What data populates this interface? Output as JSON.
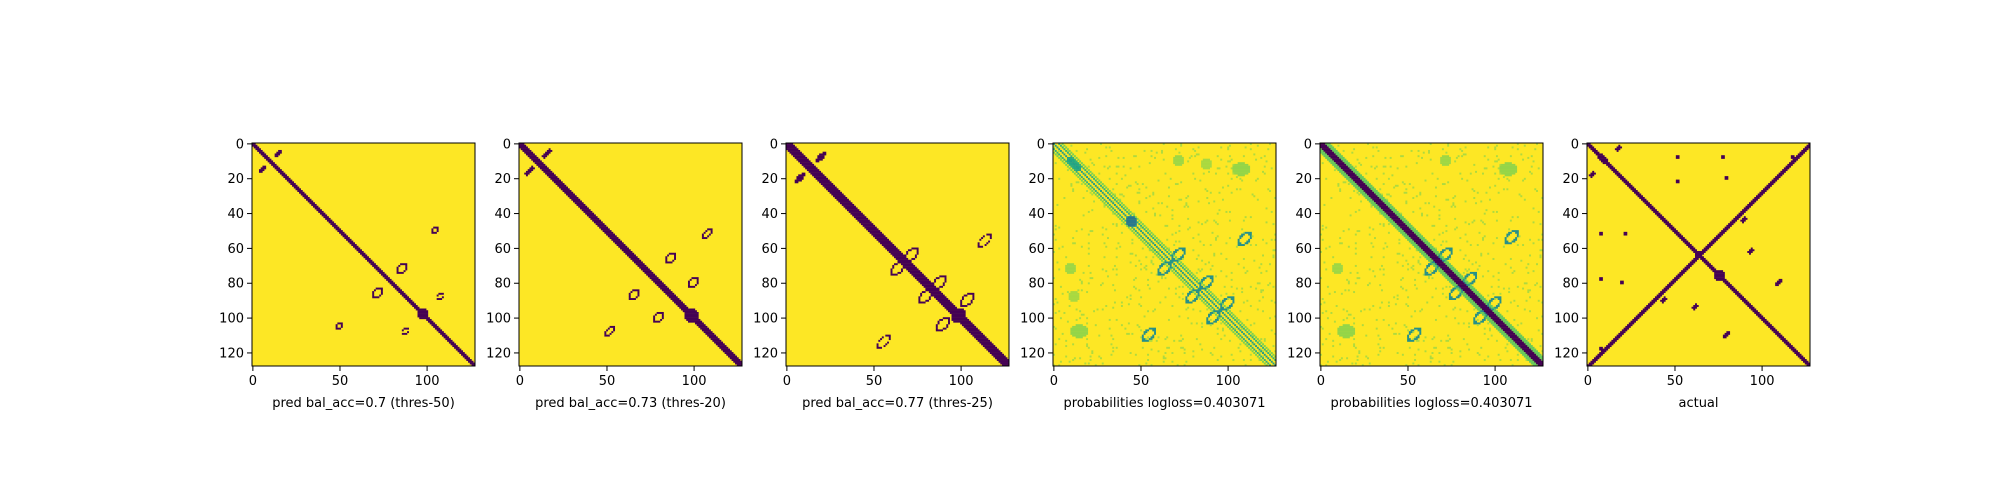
{
  "colors": {
    "contact": "#440154",
    "background": "#fde725",
    "mid_high": "#7ad151",
    "mid": "#22a884",
    "mid_low": "#2a788e",
    "deep": "#414487"
  },
  "chart_data": [
    {
      "type": "heatmap",
      "panel": "pred-threshold-50",
      "xlabel": "pred bal_acc=0.7 (thres-50)",
      "xticks": [
        0,
        50,
        100
      ],
      "yticks": [
        0,
        20,
        40,
        60,
        80,
        100,
        120
      ],
      "xlim": [
        0,
        127
      ],
      "ylim": [
        127,
        0
      ],
      "value_kind": "binary",
      "diagonal_halfwidth": 1.5,
      "features": [
        {
          "kind": "ellipse",
          "cx": 50,
          "cy": 105,
          "rx": 2.5,
          "ry": 1.5,
          "angle": -45,
          "ring": 1.2
        },
        {
          "kind": "ellipse",
          "cx": 105,
          "cy": 50,
          "rx": 2.5,
          "ry": 1.5,
          "angle": -45,
          "ring": 1.2
        },
        {
          "kind": "ellipse",
          "cx": 72,
          "cy": 86,
          "rx": 4,
          "ry": 2.5,
          "angle": -45,
          "ring": 1.0
        },
        {
          "kind": "ellipse",
          "cx": 86,
          "cy": 72,
          "rx": 4,
          "ry": 2.5,
          "angle": -45,
          "ring": 1.0
        },
        {
          "kind": "ellipse",
          "cx": 98,
          "cy": 98,
          "rx": 3.5,
          "ry": 3.5,
          "angle": 0,
          "ring": 0
        },
        {
          "kind": "ellipse",
          "cx": 88,
          "cy": 108,
          "rx": 3,
          "ry": 1.5,
          "angle": -45,
          "ring": 1.0
        },
        {
          "kind": "ellipse",
          "cx": 108,
          "cy": 88,
          "rx": 3,
          "ry": 1.5,
          "angle": -45,
          "ring": 1.0
        },
        {
          "kind": "ellipse",
          "cx": 6,
          "cy": 15,
          "rx": 3,
          "ry": 1.2,
          "angle": -45,
          "ring": 0
        },
        {
          "kind": "ellipse",
          "cx": 15,
          "cy": 6,
          "rx": 3,
          "ry": 1.2,
          "angle": -45,
          "ring": 0
        }
      ]
    },
    {
      "type": "heatmap",
      "panel": "pred-threshold-20",
      "xlabel": "pred bal_acc=0.73 (thres-20)",
      "xticks": [
        0,
        50,
        100
      ],
      "yticks": [
        0,
        20,
        40,
        60,
        80,
        100,
        120
      ],
      "xlim": [
        0,
        127
      ],
      "ylim": [
        127,
        0
      ],
      "value_kind": "binary",
      "diagonal_halfwidth": 2.2,
      "features": [
        {
          "kind": "ellipse",
          "cx": 52,
          "cy": 108,
          "rx": 4,
          "ry": 2,
          "angle": -45,
          "ring": 1.2
        },
        {
          "kind": "ellipse",
          "cx": 108,
          "cy": 52,
          "rx": 4,
          "ry": 2,
          "angle": -45,
          "ring": 1.2
        },
        {
          "kind": "ellipse",
          "cx": 66,
          "cy": 87,
          "rx": 4,
          "ry": 2.5,
          "angle": -45,
          "ring": 1.1
        },
        {
          "kind": "ellipse",
          "cx": 87,
          "cy": 66,
          "rx": 4,
          "ry": 2.5,
          "angle": -45,
          "ring": 1.1
        },
        {
          "kind": "ellipse",
          "cx": 80,
          "cy": 100,
          "rx": 4,
          "ry": 2.5,
          "angle": -45,
          "ring": 1.1
        },
        {
          "kind": "ellipse",
          "cx": 100,
          "cy": 80,
          "rx": 4,
          "ry": 2.5,
          "angle": -45,
          "ring": 1.1
        },
        {
          "kind": "ellipse",
          "cx": 99,
          "cy": 99,
          "rx": 4,
          "ry": 4,
          "angle": 0,
          "ring": 0
        },
        {
          "kind": "ellipse",
          "cx": 6,
          "cy": 16,
          "rx": 3.5,
          "ry": 1.4,
          "angle": -45,
          "ring": 0
        },
        {
          "kind": "ellipse",
          "cx": 16,
          "cy": 6,
          "rx": 3.5,
          "ry": 1.4,
          "angle": -45,
          "ring": 0
        }
      ]
    },
    {
      "type": "heatmap",
      "panel": "pred-threshold-25",
      "xlabel": "pred bal_acc=0.77 (thres-25)",
      "xticks": [
        0,
        50,
        100
      ],
      "yticks": [
        0,
        20,
        40,
        60,
        80,
        100,
        120
      ],
      "xlim": [
        0,
        127
      ],
      "ylim": [
        127,
        0
      ],
      "value_kind": "binary",
      "diagonal_halfwidth": 3.0,
      "features": [
        {
          "kind": "ellipse",
          "cx": 56,
          "cy": 114,
          "rx": 5,
          "ry": 2.5,
          "angle": -45,
          "ring": 1.4
        },
        {
          "kind": "ellipse",
          "cx": 114,
          "cy": 56,
          "rx": 5,
          "ry": 2.5,
          "angle": -45,
          "ring": 1.4
        },
        {
          "kind": "ellipse",
          "cx": 64,
          "cy": 72,
          "rx": 5,
          "ry": 3,
          "angle": -45,
          "ring": 1.3
        },
        {
          "kind": "ellipse",
          "cx": 72,
          "cy": 64,
          "rx": 5,
          "ry": 3,
          "angle": -45,
          "ring": 1.3
        },
        {
          "kind": "ellipse",
          "cx": 80,
          "cy": 88,
          "rx": 5,
          "ry": 3,
          "angle": -45,
          "ring": 1.3
        },
        {
          "kind": "ellipse",
          "cx": 88,
          "cy": 80,
          "rx": 5,
          "ry": 3,
          "angle": -45,
          "ring": 1.3
        },
        {
          "kind": "ellipse",
          "cx": 90,
          "cy": 104,
          "rx": 5,
          "ry": 3,
          "angle": -45,
          "ring": 1.3
        },
        {
          "kind": "ellipse",
          "cx": 104,
          "cy": 90,
          "rx": 5,
          "ry": 3,
          "angle": -45,
          "ring": 1.3
        },
        {
          "kind": "ellipse",
          "cx": 10,
          "cy": 10,
          "rx": 6,
          "ry": 2.5,
          "angle": 45,
          "ring": 0
        },
        {
          "kind": "ellipse",
          "cx": 8,
          "cy": 20,
          "rx": 4,
          "ry": 1.5,
          "angle": -45,
          "ring": 0
        },
        {
          "kind": "ellipse",
          "cx": 20,
          "cy": 8,
          "rx": 4,
          "ry": 1.5,
          "angle": -45,
          "ring": 0
        },
        {
          "kind": "ellipse",
          "cx": 99,
          "cy": 99,
          "rx": 4.5,
          "ry": 4.5,
          "angle": 0,
          "ring": 0
        }
      ]
    },
    {
      "type": "heatmap",
      "panel": "probabilities",
      "xlabel": "probabilities logloss=0.403071",
      "xticks": [
        0,
        50,
        100
      ],
      "yticks": [
        0,
        20,
        40,
        60,
        80,
        100,
        120
      ],
      "xlim": [
        0,
        127
      ],
      "ylim": [
        127,
        0
      ],
      "value_kind": "probability",
      "diagonal_halfwidth": 0,
      "features": [
        {
          "kind": "line",
          "offset": 3,
          "width": 0.8,
          "value": 0.45
        },
        {
          "kind": "line",
          "offset": -3,
          "width": 0.8,
          "value": 0.45
        },
        {
          "kind": "line",
          "offset": 5,
          "width": 0.6,
          "value": 0.25
        },
        {
          "kind": "line",
          "offset": -5,
          "width": 0.6,
          "value": 0.25
        },
        {
          "kind": "ellipse",
          "cx": 55,
          "cy": 110,
          "rx": 5,
          "ry": 3,
          "angle": -45,
          "ring": 1.5,
          "value": 0.6
        },
        {
          "kind": "ellipse",
          "cx": 110,
          "cy": 55,
          "rx": 5,
          "ry": 3,
          "angle": -45,
          "ring": 1.5,
          "value": 0.6
        },
        {
          "kind": "ellipse",
          "cx": 64,
          "cy": 72,
          "rx": 5,
          "ry": 3,
          "angle": -45,
          "ring": 1.5,
          "value": 0.6
        },
        {
          "kind": "ellipse",
          "cx": 72,
          "cy": 64,
          "rx": 5,
          "ry": 3,
          "angle": -45,
          "ring": 1.5,
          "value": 0.6
        },
        {
          "kind": "ellipse",
          "cx": 80,
          "cy": 88,
          "rx": 5,
          "ry": 3,
          "angle": -45,
          "ring": 1.5,
          "value": 0.6
        },
        {
          "kind": "ellipse",
          "cx": 88,
          "cy": 80,
          "rx": 5,
          "ry": 3,
          "angle": -45,
          "ring": 1.5,
          "value": 0.6
        },
        {
          "kind": "ellipse",
          "cx": 92,
          "cy": 100,
          "rx": 5,
          "ry": 3,
          "angle": -45,
          "ring": 1.5,
          "value": 0.6
        },
        {
          "kind": "ellipse",
          "cx": 100,
          "cy": 92,
          "rx": 5,
          "ry": 3,
          "angle": -45,
          "ring": 1.5,
          "value": 0.6
        },
        {
          "kind": "ellipse",
          "cx": 45,
          "cy": 45,
          "rx": 3,
          "ry": 3,
          "angle": 0,
          "ring": 0,
          "value": 0.7
        },
        {
          "kind": "ellipse",
          "cx": 12,
          "cy": 12,
          "rx": 5,
          "ry": 2,
          "angle": 45,
          "ring": 0,
          "value": 0.5
        },
        {
          "kind": "ellipse",
          "cx": 108,
          "cy": 15,
          "rx": 5,
          "ry": 4,
          "angle": 0,
          "ring": 0,
          "value": 0.2
        },
        {
          "kind": "ellipse",
          "cx": 15,
          "cy": 108,
          "rx": 5,
          "ry": 4,
          "angle": 0,
          "ring": 0,
          "value": 0.2
        },
        {
          "kind": "ellipse",
          "cx": 72,
          "cy": 10,
          "rx": 3,
          "ry": 3,
          "angle": 0,
          "ring": 0,
          "value": 0.18
        },
        {
          "kind": "ellipse",
          "cx": 10,
          "cy": 72,
          "rx": 3,
          "ry": 3,
          "angle": 0,
          "ring": 0,
          "value": 0.18
        },
        {
          "kind": "ellipse",
          "cx": 88,
          "cy": 12,
          "rx": 3,
          "ry": 3,
          "angle": 0,
          "ring": 0,
          "value": 0.16
        },
        {
          "kind": "ellipse",
          "cx": 12,
          "cy": 88,
          "rx": 3,
          "ry": 3,
          "angle": 0,
          "ring": 0,
          "value": 0.16
        }
      ]
    },
    {
      "type": "heatmap",
      "panel": "probabilities-2",
      "xlabel": "probabilities logloss=0.403071",
      "xticks": [
        0,
        50,
        100
      ],
      "yticks": [
        0,
        20,
        40,
        60,
        80,
        100,
        120
      ],
      "xlim": [
        0,
        127
      ],
      "ylim": [
        127,
        0
      ],
      "value_kind": "probability",
      "diagonal_halfwidth": 2.0,
      "features": [
        {
          "kind": "line",
          "offset": 4,
          "width": 1.0,
          "value": 0.3
        },
        {
          "kind": "line",
          "offset": -4,
          "width": 1.0,
          "value": 0.3
        },
        {
          "kind": "ellipse",
          "cx": 54,
          "cy": 110,
          "rx": 5,
          "ry": 3,
          "angle": -45,
          "ring": 1.5,
          "value": 0.6
        },
        {
          "kind": "ellipse",
          "cx": 110,
          "cy": 54,
          "rx": 5,
          "ry": 3,
          "angle": -45,
          "ring": 1.5,
          "value": 0.6
        },
        {
          "kind": "ellipse",
          "cx": 64,
          "cy": 72,
          "rx": 5,
          "ry": 3,
          "angle": -45,
          "ring": 1.5,
          "value": 0.6
        },
        {
          "kind": "ellipse",
          "cx": 72,
          "cy": 64,
          "rx": 5,
          "ry": 3,
          "angle": -45,
          "ring": 1.5,
          "value": 0.6
        },
        {
          "kind": "ellipse",
          "cx": 78,
          "cy": 86,
          "rx": 5,
          "ry": 3,
          "angle": -45,
          "ring": 1.5,
          "value": 0.6
        },
        {
          "kind": "ellipse",
          "cx": 86,
          "cy": 78,
          "rx": 5,
          "ry": 3,
          "angle": -45,
          "ring": 1.5,
          "value": 0.6
        },
        {
          "kind": "ellipse",
          "cx": 92,
          "cy": 100,
          "rx": 5,
          "ry": 3,
          "angle": -45,
          "ring": 1.5,
          "value": 0.6
        },
        {
          "kind": "ellipse",
          "cx": 100,
          "cy": 92,
          "rx": 5,
          "ry": 3,
          "angle": -45,
          "ring": 1.5,
          "value": 0.6
        },
        {
          "kind": "ellipse",
          "cx": 108,
          "cy": 15,
          "rx": 5,
          "ry": 4,
          "angle": 0,
          "ring": 0,
          "value": 0.2
        },
        {
          "kind": "ellipse",
          "cx": 15,
          "cy": 108,
          "rx": 5,
          "ry": 4,
          "angle": 0,
          "ring": 0,
          "value": 0.2
        },
        {
          "kind": "ellipse",
          "cx": 72,
          "cy": 10,
          "rx": 3,
          "ry": 3,
          "angle": 0,
          "ring": 0,
          "value": 0.18
        },
        {
          "kind": "ellipse",
          "cx": 10,
          "cy": 72,
          "rx": 3,
          "ry": 3,
          "angle": 0,
          "ring": 0,
          "value": 0.18
        }
      ]
    },
    {
      "type": "heatmap",
      "panel": "actual",
      "xlabel": "actual",
      "xticks": [
        0,
        50,
        100
      ],
      "yticks": [
        0,
        20,
        40,
        60,
        80,
        100,
        120
      ],
      "xlim": [
        0,
        127
      ],
      "ylim": [
        127,
        0
      ],
      "value_kind": "binary",
      "diagonal_halfwidth": 1.5,
      "features": [
        {
          "kind": "antidiag",
          "sum": 128,
          "halfwidth": 1.4
        },
        {
          "kind": "ellipse",
          "cx": 9,
          "cy": 9,
          "rx": 4,
          "ry": 2,
          "angle": 45,
          "ring": 0
        },
        {
          "kind": "ellipse",
          "cx": 3,
          "cy": 18,
          "rx": 2,
          "ry": 1,
          "angle": -45,
          "ring": 0
        },
        {
          "kind": "ellipse",
          "cx": 18,
          "cy": 3,
          "rx": 2,
          "ry": 1,
          "angle": -45,
          "ring": 0
        },
        {
          "kind": "ellipse",
          "cx": 8,
          "cy": 52,
          "rx": 1.5,
          "ry": 1.2,
          "angle": 0,
          "ring": 0
        },
        {
          "kind": "ellipse",
          "cx": 52,
          "cy": 8,
          "rx": 1.5,
          "ry": 1.2,
          "angle": 0,
          "ring": 0
        },
        {
          "kind": "ellipse",
          "cx": 22,
          "cy": 52,
          "rx": 1.5,
          "ry": 1.2,
          "angle": 0,
          "ring": 0
        },
        {
          "kind": "ellipse",
          "cx": 52,
          "cy": 22,
          "rx": 1.5,
          "ry": 1.2,
          "angle": 0,
          "ring": 0
        },
        {
          "kind": "ellipse",
          "cx": 8,
          "cy": 78,
          "rx": 1.5,
          "ry": 1.5,
          "angle": 0,
          "ring": 0
        },
        {
          "kind": "ellipse",
          "cx": 78,
          "cy": 8,
          "rx": 1.5,
          "ry": 1.5,
          "angle": 0,
          "ring": 0
        },
        {
          "kind": "ellipse",
          "cx": 20,
          "cy": 80,
          "rx": 1.5,
          "ry": 1.5,
          "angle": 0,
          "ring": 0
        },
        {
          "kind": "ellipse",
          "cx": 80,
          "cy": 20,
          "rx": 1.5,
          "ry": 1.5,
          "angle": 0,
          "ring": 0
        },
        {
          "kind": "ellipse",
          "cx": 44,
          "cy": 90,
          "rx": 2,
          "ry": 1.2,
          "angle": -45,
          "ring": 0
        },
        {
          "kind": "ellipse",
          "cx": 90,
          "cy": 44,
          "rx": 2,
          "ry": 1.2,
          "angle": -45,
          "ring": 0
        },
        {
          "kind": "ellipse",
          "cx": 80,
          "cy": 110,
          "rx": 3,
          "ry": 1.2,
          "angle": -45,
          "ring": 0
        },
        {
          "kind": "ellipse",
          "cx": 110,
          "cy": 80,
          "rx": 3,
          "ry": 1.2,
          "angle": -45,
          "ring": 0
        },
        {
          "kind": "ellipse",
          "cx": 76,
          "cy": 76,
          "rx": 3,
          "ry": 3,
          "angle": 0,
          "ring": 0
        },
        {
          "kind": "ellipse",
          "cx": 64,
          "cy": 64,
          "rx": 2,
          "ry": 2,
          "angle": 0,
          "ring": 0
        },
        {
          "kind": "ellipse",
          "cx": 118,
          "cy": 8,
          "rx": 1.5,
          "ry": 1.5,
          "angle": 0,
          "ring": 0
        },
        {
          "kind": "ellipse",
          "cx": 8,
          "cy": 118,
          "rx": 1.5,
          "ry": 1.5,
          "angle": 0,
          "ring": 0
        },
        {
          "kind": "ellipse",
          "cx": 94,
          "cy": 62,
          "rx": 2,
          "ry": 1.2,
          "angle": -45,
          "ring": 0
        },
        {
          "kind": "ellipse",
          "cx": 62,
          "cy": 94,
          "rx": 2,
          "ry": 1.2,
          "angle": -45,
          "ring": 0
        }
      ]
    }
  ]
}
